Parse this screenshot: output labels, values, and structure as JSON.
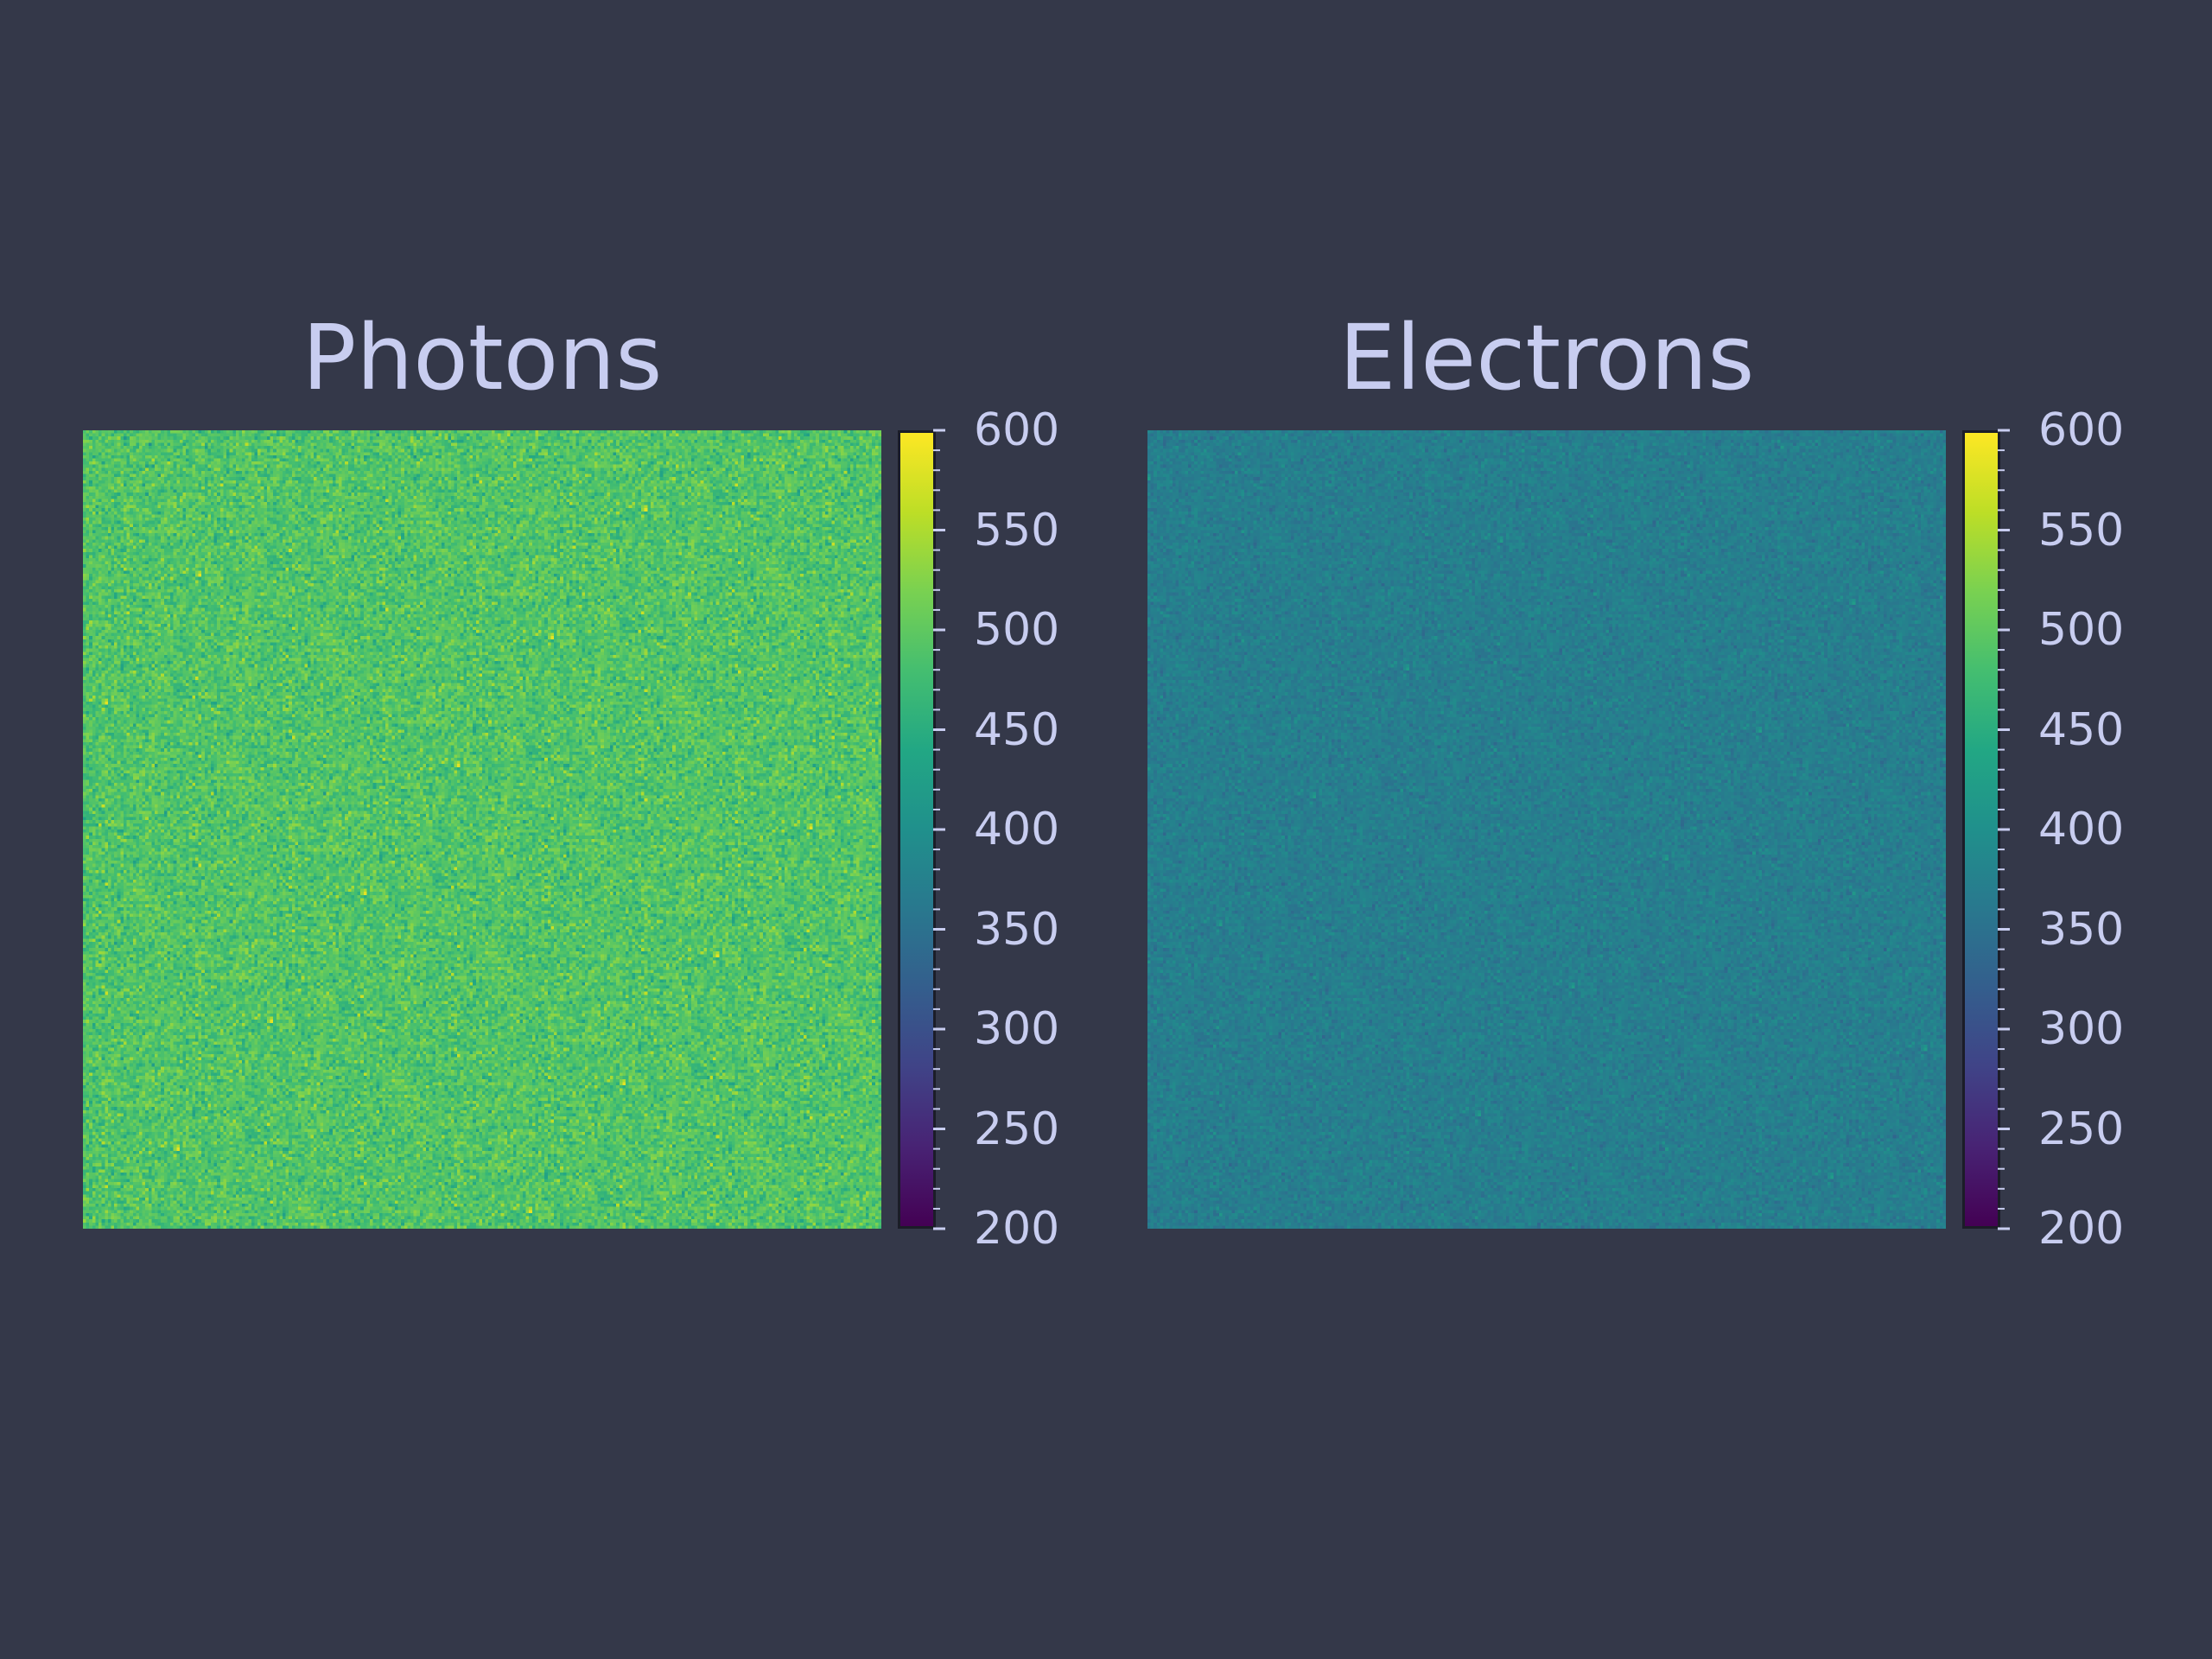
{
  "theme": {
    "background": "#343849",
    "text": "#c8cdf0",
    "colormap": "viridis"
  },
  "chart_data": [
    {
      "type": "heatmap",
      "title": "Photons",
      "grid_size": 256,
      "value_mean": 490,
      "value_spread": 22,
      "colorbar": {
        "vmin": 200,
        "vmax": 600,
        "ticks": [
          "600",
          "550",
          "500",
          "450",
          "400",
          "350",
          "300",
          "250",
          "200"
        ],
        "tick_values": [
          600,
          550,
          500,
          450,
          400,
          350,
          300,
          250,
          200
        ]
      }
    },
    {
      "type": "heatmap",
      "title": "Electrons",
      "grid_size": 256,
      "value_mean": 370,
      "value_spread": 12,
      "colorbar": {
        "vmin": 200,
        "vmax": 600,
        "ticks": [
          "600",
          "550",
          "500",
          "450",
          "400",
          "350",
          "300",
          "250",
          "200"
        ],
        "tick_values": [
          600,
          550,
          500,
          450,
          400,
          350,
          300,
          250,
          200
        ]
      }
    }
  ]
}
